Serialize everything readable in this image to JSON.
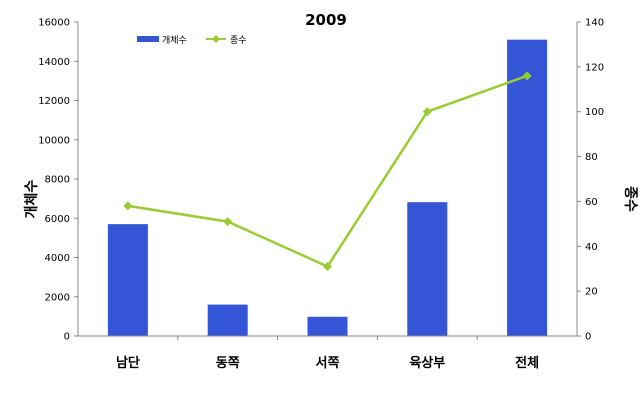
{
  "chart_data": {
    "type": "bar",
    "title": "2009",
    "categories": [
      "남단",
      "동쪽",
      "서쪽",
      "육상부",
      "전체"
    ],
    "series": [
      {
        "name": "개체수",
        "kind": "bar",
        "axis": "left",
        "color": "#3355D6",
        "values": [
          5700,
          1600,
          980,
          6820,
          15100
        ]
      },
      {
        "name": "종수",
        "kind": "line",
        "axis": "right",
        "color": "#99CC33",
        "values": [
          58,
          51,
          31,
          100,
          116
        ]
      }
    ],
    "ylabel": "개체수",
    "ylabel_right": "종수",
    "ylim": [
      0,
      16000
    ],
    "ylim_right": [
      0,
      140
    ],
    "yticks": [
      "0",
      "2000",
      "4000",
      "6000",
      "8000",
      "10000",
      "12000",
      "14000",
      "16000"
    ],
    "yticks_right": [
      "0",
      "20",
      "40",
      "60",
      "80",
      "100",
      "120",
      "140"
    ],
    "grid": false,
    "legend_position": "top-left"
  }
}
